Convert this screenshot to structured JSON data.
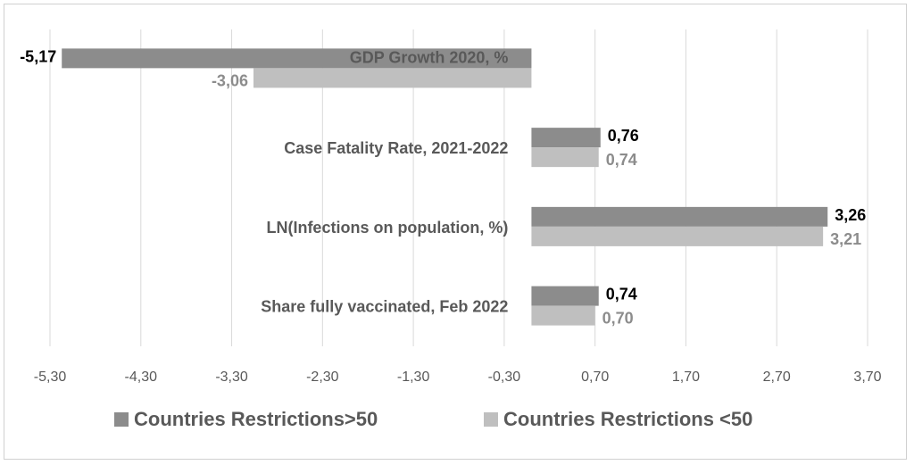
{
  "chart_data": {
    "type": "bar",
    "orientation": "horizontal",
    "categories": [
      "GDP Growth 2020, %",
      "Case Fatality Rate, 2021-2022",
      "LN(Infections on population, %)",
      "Share fully vaccinated, Feb 2022"
    ],
    "series": [
      {
        "name": "Countries Restrictions>50",
        "color": "#8c8c8c",
        "values": [
          -5.17,
          0.76,
          3.26,
          0.74
        ],
        "labels": [
          "-5,17",
          "0,76",
          "3,26",
          "0,74"
        ]
      },
      {
        "name": "Countries Restrictions <50",
        "color": "#bfbfbf",
        "values": [
          -3.06,
          0.74,
          3.21,
          0.7
        ],
        "labels": [
          "-3,06",
          "0,74",
          "3,21",
          "0,70"
        ]
      }
    ],
    "x_ticks": [
      -5.3,
      -4.3,
      -3.3,
      -2.3,
      -1.3,
      -0.3,
      0.7,
      1.7,
      2.7,
      3.7
    ],
    "x_tick_labels": [
      "-5,30",
      "-4,30",
      "-3,30",
      "-2,30",
      "-1,30",
      "-0,30",
      "0,70",
      "1,70",
      "2,70",
      "3,70"
    ],
    "xlim": [
      -5.3,
      3.7
    ],
    "grid": true,
    "legend_position": "bottom",
    "title": "",
    "xlabel": "",
    "ylabel": ""
  }
}
